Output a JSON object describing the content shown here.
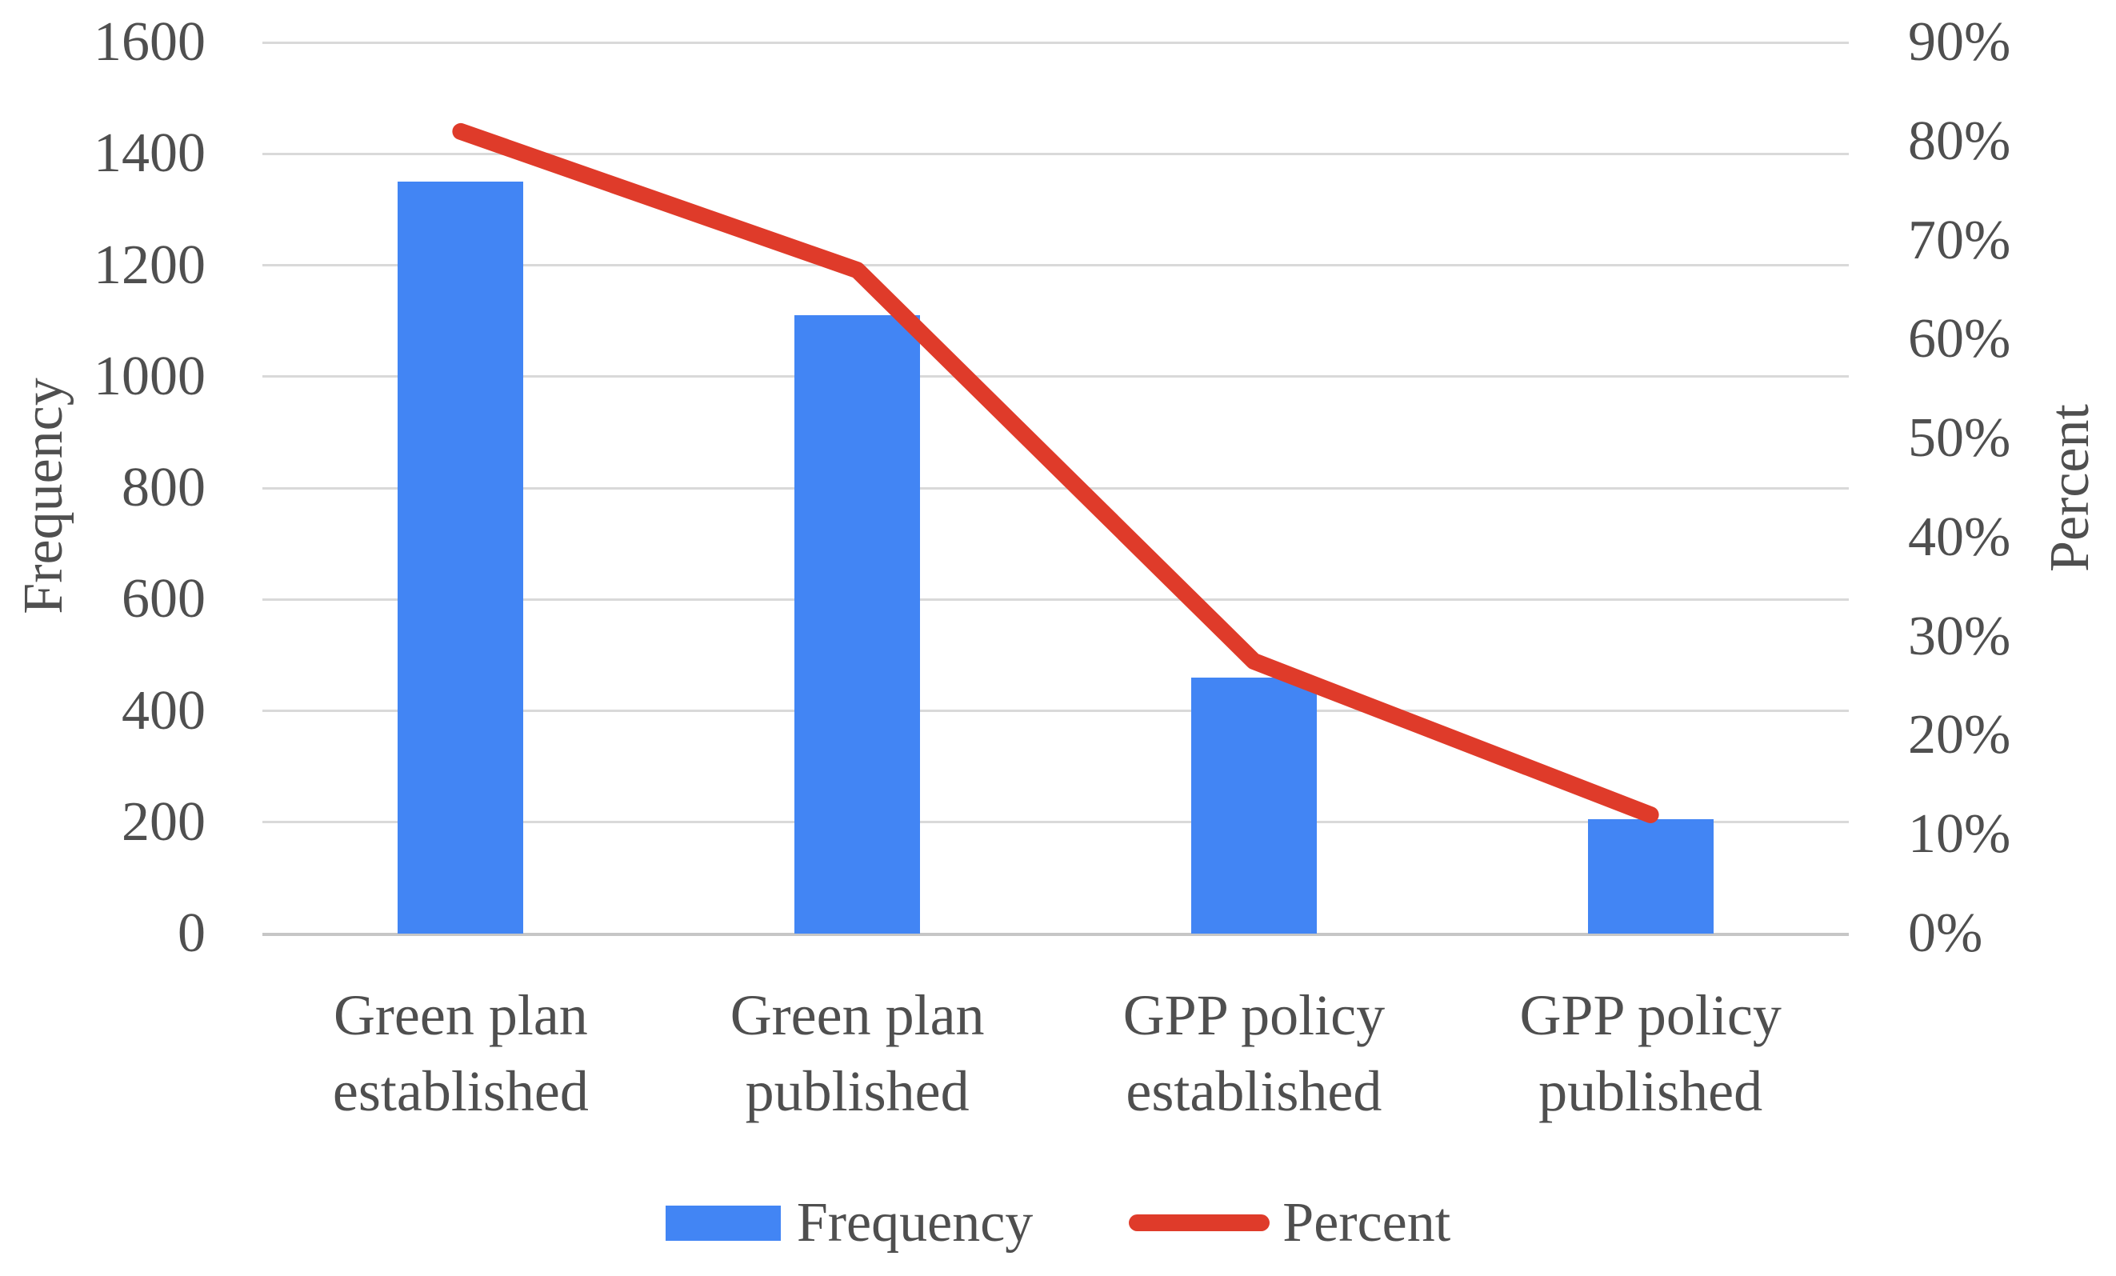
{
  "chart_data": {
    "type": "bar",
    "subtype": "combo-bar-line-dual-axis",
    "categories": [
      {
        "line1": "Green plan",
        "line2": "established"
      },
      {
        "line1": "Green plan",
        "line2": "published"
      },
      {
        "line1": "GPP policy",
        "line2": "established"
      },
      {
        "line1": "GPP policy",
        "line2": "published"
      }
    ],
    "series": [
      {
        "name": "Frequency",
        "type": "bar",
        "axis": "left",
        "values": [
          1350,
          1110,
          460,
          205
        ],
        "color": "#4285f4"
      },
      {
        "name": "Percent",
        "type": "line",
        "axis": "right",
        "values": [
          81,
          67,
          27.5,
          12
        ],
        "color": "#df3b2a"
      }
    ],
    "left_axis": {
      "title": "Frequency",
      "min": 0,
      "max": 1600,
      "ticks": [
        "1600",
        "1400",
        "1200",
        "1000",
        "800",
        "600",
        "400",
        "200",
        "0"
      ]
    },
    "right_axis": {
      "title": "Percent",
      "min": 0,
      "max": 90,
      "ticks": [
        "90%",
        "80%",
        "70%",
        "60%",
        "50%",
        "40%",
        "30%",
        "20%",
        "10%",
        "0%"
      ]
    },
    "grid": true,
    "legend_position": "bottom"
  },
  "legend": {
    "items": [
      {
        "label": "Frequency",
        "swatch": "bar"
      },
      {
        "label": "Percent",
        "swatch": "line"
      }
    ]
  },
  "colors": {
    "bar": "#4285f4",
    "line": "#df3b2a",
    "grid": "#d9d9d9",
    "axis_line": "#c6c6c6",
    "text": "#4f4f4f"
  }
}
